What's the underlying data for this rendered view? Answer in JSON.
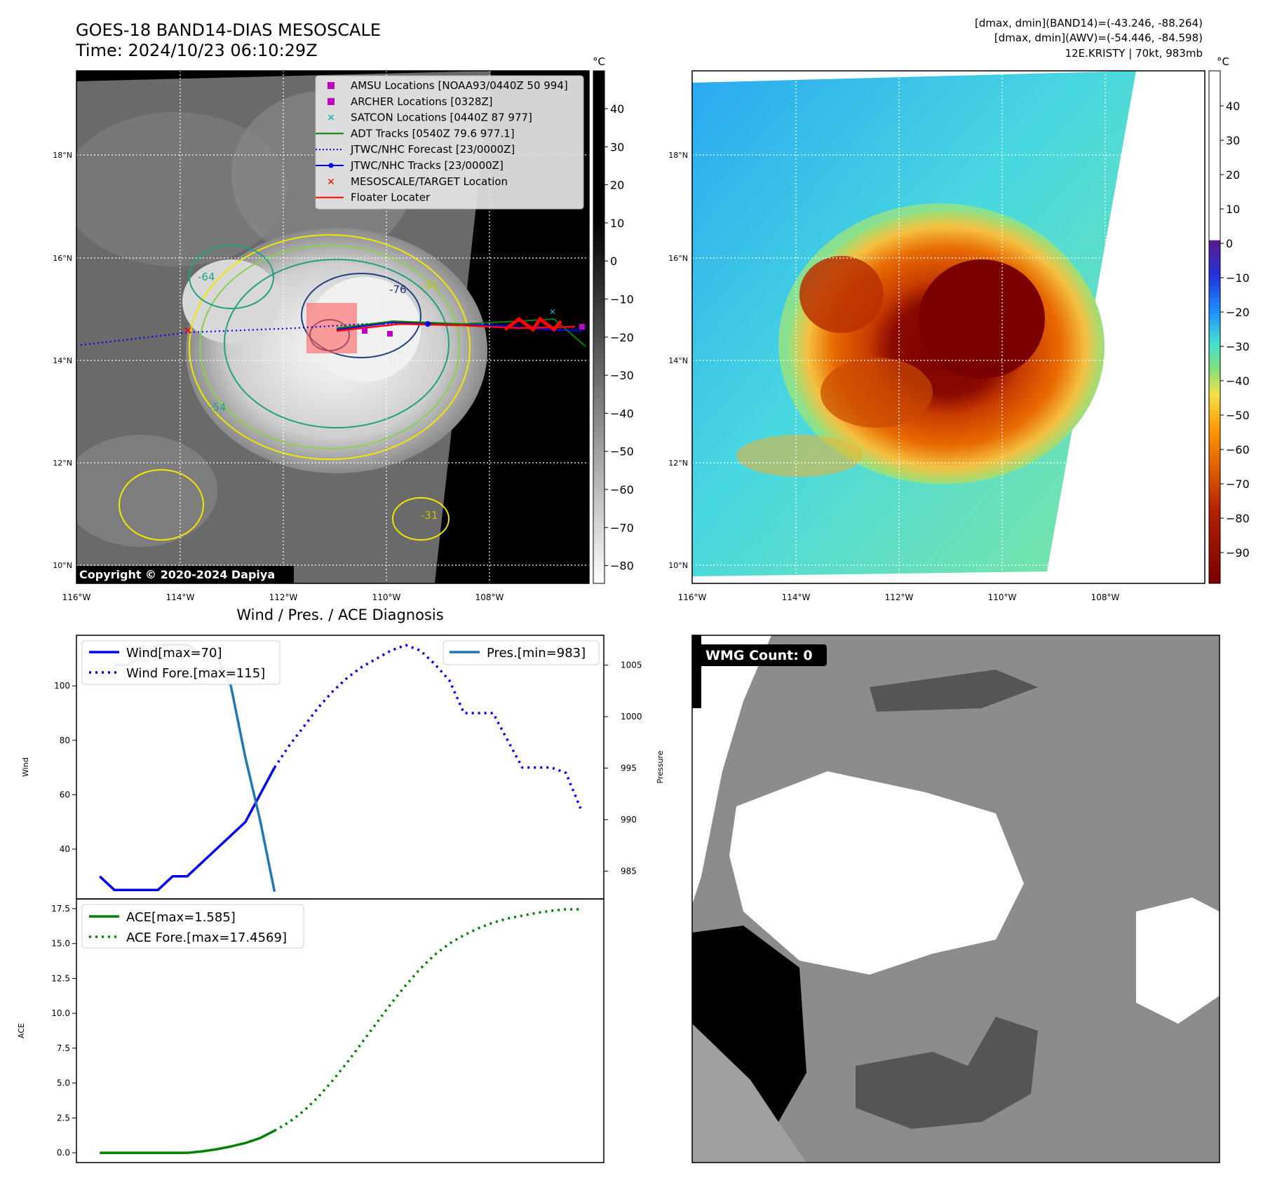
{
  "header": {
    "title_line1": "GOES-18 BAND14-DIAS MESOSCALE",
    "title_line2": "Time: 2024/10/23 06:10:29Z",
    "info_line1": "[dmax, dmin](BAND14)=(-43.246, -88.264)",
    "info_line2": "[dmax, dmin](AWV)=(-54.446, -84.598)",
    "info_line3": "12E.KRISTY | 70kt, 983mb"
  },
  "colors": {
    "wind": "#0000ee",
    "pressure": "#1f77b4",
    "ace": "#008000",
    "legend_amsu": "#c000c0",
    "legend_archer": "#c000c0",
    "legend_satcon": "#00b0b0",
    "legend_adt": "#008000",
    "legend_forecast": "#0000ee",
    "legend_tracks": "#0000ee",
    "legend_target": "#ff0000",
    "legend_floater": "#ff0000"
  },
  "map_panel": {
    "lat_ticks": [
      "18°N",
      "16°N",
      "14°N",
      "12°N",
      "10°N"
    ],
    "lon_ticks": [
      "116°W",
      "114°W",
      "112°W",
      "110°W",
      "108°W"
    ],
    "colorbar_unit": "°C",
    "colorbar_ticks": [
      "40",
      "30",
      "20",
      "10",
      "0",
      "−10",
      "−20",
      "−30",
      "−40",
      "−50",
      "−60",
      "−70",
      "−80"
    ],
    "copyright": "Copyright © 2020-2024 Dapiya",
    "contour_labels": [
      "-76",
      "-64",
      "-54",
      "-31",
      "-31",
      "-41",
      "-64",
      "-54",
      "-31"
    ],
    "legend": [
      {
        "label": "AMSU Locations [NOAA93/0440Z 50 994]",
        "marker": "square",
        "color_key": "legend_amsu"
      },
      {
        "label": "ARCHER Locations [0328Z]",
        "marker": "square",
        "color_key": "legend_archer"
      },
      {
        "label": "SATCON Locations [0440Z 87 977]",
        "marker": "x",
        "color_key": "legend_satcon"
      },
      {
        "label": "ADT Tracks [0540Z 79.6 977.1]",
        "marker": "line",
        "color_key": "legend_adt"
      },
      {
        "label": "JTWC/NHC Forecast [23/0000Z]",
        "marker": "dotted",
        "color_key": "legend_forecast"
      },
      {
        "label": "JTWC/NHC Tracks [23/0000Z]",
        "marker": "line-dot",
        "color_key": "legend_tracks"
      },
      {
        "label": "MESOSCALE/TARGET Location",
        "marker": "x",
        "color_key": "legend_target"
      },
      {
        "label": "Floater Locater",
        "marker": "line",
        "color_key": "legend_floater"
      }
    ]
  },
  "awv_panel": {
    "lat_ticks": [
      "18°N",
      "16°N",
      "14°N",
      "12°N",
      "10°N"
    ],
    "lon_ticks": [
      "116°W",
      "114°W",
      "112°W",
      "110°W",
      "108°W"
    ],
    "colorbar_unit": "°C",
    "colorbar_ticks": [
      "40",
      "30",
      "20",
      "10",
      "0",
      "−10",
      "−20",
      "−30",
      "−40",
      "−50",
      "−60",
      "−70",
      "−80",
      "−90"
    ]
  },
  "wmg_panel": {
    "label": "WMG Count: 0"
  },
  "chart_data": [
    {
      "type": "line",
      "title": "Wind / Pres. / ACE Diagnosis",
      "ylabel": "Wind",
      "y2label": "Pressure",
      "ylim": [
        21.7,
        118.6
      ],
      "y2lim": [
        982.3,
        1007.9
      ],
      "yticks": [
        40,
        60,
        80,
        100
      ],
      "y2ticks": [
        985,
        990,
        995,
        1000,
        1005
      ],
      "x": [
        0,
        1,
        2,
        3,
        4,
        5,
        6,
        7,
        8,
        9,
        10,
        11,
        12,
        13,
        14,
        15,
        16,
        17,
        18,
        19,
        20,
        21,
        22,
        23,
        24,
        25,
        26,
        27,
        28,
        29,
        30,
        31,
        32,
        33
      ],
      "series": [
        {
          "name": "Wind[max=70]",
          "axis": "left",
          "style": "solid",
          "color_key": "wind",
          "x": [
            0,
            1,
            2,
            3,
            4,
            5,
            6,
            7,
            8,
            9,
            10,
            11,
            12,
            13
          ],
          "values": [
            30,
            25,
            25,
            25,
            25,
            30,
            30,
            35,
            40,
            45,
            50,
            60,
            70,
            null
          ]
        },
        {
          "name": "Wind Fore.[max=115]",
          "axis": "left",
          "style": "dotted",
          "color_key": "wind",
          "x": [
            12,
            13,
            14,
            15,
            16,
            17,
            18,
            19,
            20,
            21,
            22,
            23,
            24,
            25,
            26,
            27,
            28,
            29,
            30,
            31,
            32,
            33
          ],
          "values": [
            70,
            78,
            85,
            92,
            98,
            103,
            107,
            110,
            113,
            115,
            113,
            108,
            102,
            90,
            90,
            90,
            80,
            70,
            70,
            70,
            68,
            55
          ]
        },
        {
          "name": "Pres.[min=983]",
          "axis": "right",
          "style": "solid",
          "color_key": "pressure",
          "x": [
            1,
            2,
            3,
            4,
            5,
            6,
            7,
            8,
            9,
            10,
            11,
            12
          ],
          "values": [
            1005,
            1005,
            1006,
            1007,
            1007,
            1007,
            1006,
            1006,
            1003,
            996,
            990,
            983
          ]
        }
      ]
    },
    {
      "type": "line",
      "ylabel": "ACE",
      "ylim": [
        -0.7,
        18.2
      ],
      "yticks": [
        0.0,
        2.5,
        5.0,
        7.5,
        10.0,
        12.5,
        15.0,
        17.5
      ],
      "series": [
        {
          "name": "ACE[max=1.585]",
          "style": "solid",
          "color_key": "ace",
          "x": [
            0,
            1,
            2,
            3,
            4,
            5,
            6,
            7,
            8,
            9,
            10,
            11,
            12
          ],
          "values": [
            0,
            0,
            0,
            0,
            0,
            0,
            0,
            0.1,
            0.25,
            0.45,
            0.7,
            1.05,
            1.585
          ]
        },
        {
          "name": "ACE Fore.[max=17.4569]",
          "style": "dotted",
          "color_key": "ace",
          "x": [
            12,
            13,
            14,
            15,
            16,
            17,
            18,
            19,
            20,
            21,
            22,
            23,
            24,
            25,
            26,
            27,
            28,
            29,
            30,
            31,
            32,
            33
          ],
          "values": [
            1.585,
            2.2,
            3.0,
            4.0,
            5.2,
            6.5,
            7.9,
            9.3,
            10.7,
            12.0,
            13.2,
            14.2,
            15.0,
            15.6,
            16.1,
            16.5,
            16.8,
            17.0,
            17.2,
            17.35,
            17.45,
            17.4569
          ]
        }
      ]
    }
  ]
}
